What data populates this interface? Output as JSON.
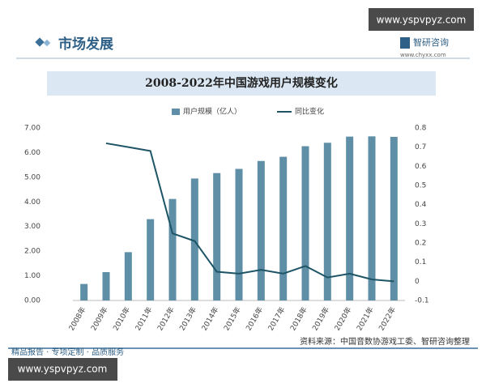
{
  "header": {
    "section": "市场发展",
    "brand": "智研咨询",
    "site": "www.chyxx.com",
    "watermark_top": "www.yspvpyz.com",
    "watermark_bottom": "www.yspvpyz.com",
    "footer": "精品报告 · 专项定制 · 品质服务"
  },
  "chart_data": {
    "type": "bar",
    "title": "2008-2022年中国游戏用户规模变化",
    "source": "资料来源：中国音数协游戏工委、智研咨询整理",
    "categories": [
      "2008年",
      "2009年",
      "2010年",
      "2011年",
      "2012年",
      "2013年",
      "2014年",
      "2015年",
      "2016年",
      "2017年",
      "2018年",
      "2019年",
      "2020年",
      "2021年",
      "2022年"
    ],
    "series": [
      {
        "name": "用户规模（亿人）",
        "type": "bar",
        "color": "#5f8fa6",
        "values": [
          0.67,
          1.15,
          1.96,
          3.3,
          4.12,
          4.95,
          5.17,
          5.34,
          5.66,
          5.83,
          6.26,
          6.4,
          6.65,
          6.66,
          6.64
        ]
      },
      {
        "name": "同比变化",
        "type": "line",
        "axis": "y2",
        "color": "#1d5566",
        "values": [
          null,
          0.72,
          0.7,
          0.68,
          0.25,
          0.21,
          0.05,
          0.04,
          0.06,
          0.04,
          0.08,
          0.02,
          0.04,
          0.01,
          0.0
        ]
      }
    ],
    "ylim": [
      0,
      7
    ],
    "yticks": [
      {
        "value": 0,
        "label": "0.00"
      },
      {
        "value": 1,
        "label": "1.00"
      },
      {
        "value": 2,
        "label": "2.00"
      },
      {
        "value": 3,
        "label": "3.00"
      },
      {
        "value": 4,
        "label": "4.00"
      },
      {
        "value": 5,
        "label": "5.00"
      },
      {
        "value": 6,
        "label": "6.00"
      },
      {
        "value": 7,
        "label": "7.00"
      }
    ],
    "y2lim": [
      -0.1,
      0.8
    ],
    "y2ticks": [
      -0.1,
      0,
      0.1,
      0.2,
      0.3,
      0.4,
      0.5,
      0.6,
      0.7,
      0.8
    ],
    "legend": "top"
  }
}
